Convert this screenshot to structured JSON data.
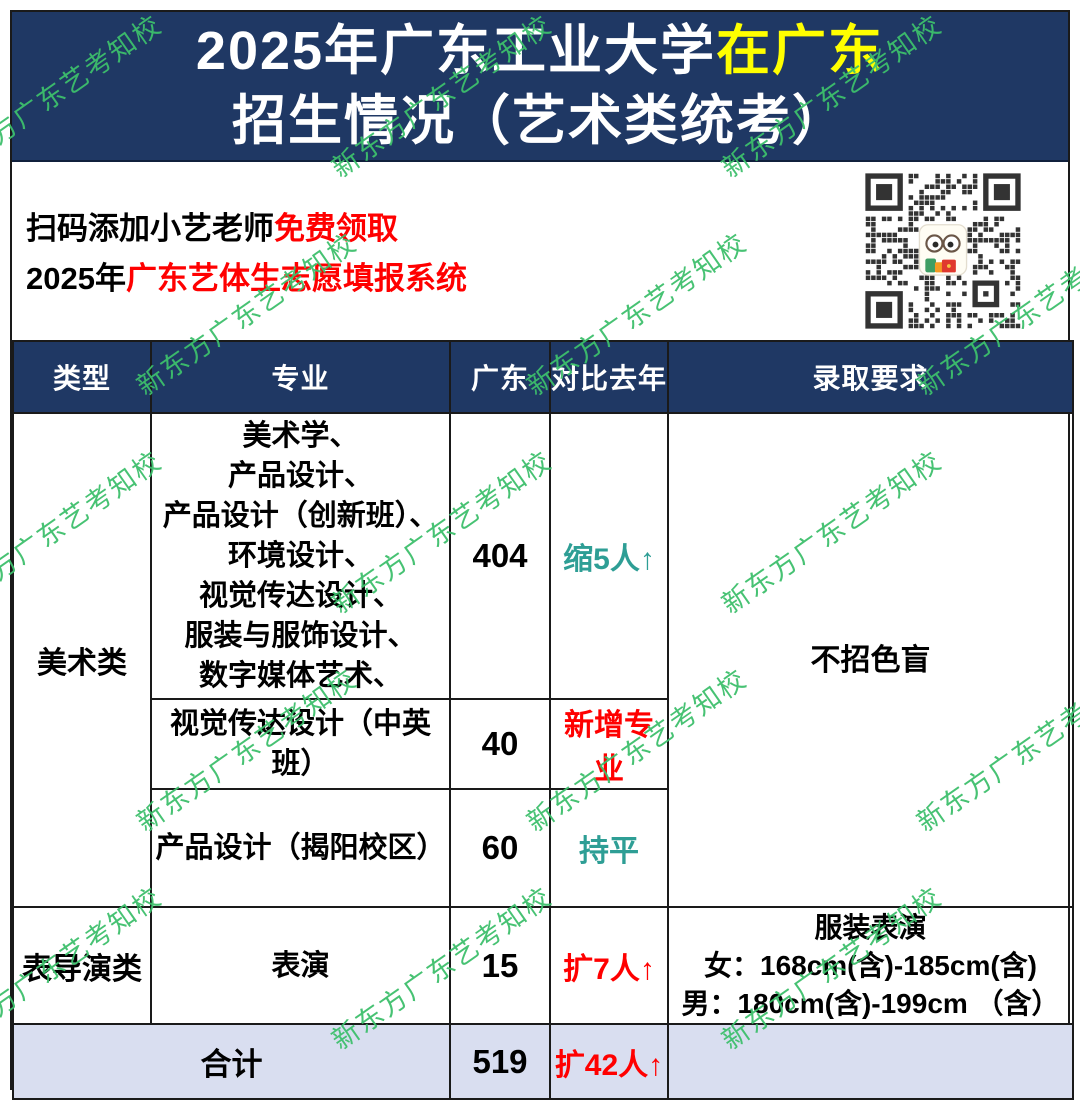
{
  "title": {
    "line1_white": "2025年广东工业大学",
    "line1_highlight": "在广东",
    "line2": "招生情况（艺术类统考）"
  },
  "promo": {
    "line1_black": "扫码添加小艺老师",
    "line1_red": "免费领取",
    "line2_black": "2025年",
    "line2_red": "广东艺体生志愿填报系统"
  },
  "qr": {
    "label": "qr-code-with-mascot"
  },
  "watermark": {
    "text": "新东方广东艺考知校",
    "color": "#3dbf6b"
  },
  "colors": {
    "navy": "#1f3864",
    "highlight_yellow": "#ffff00",
    "red": "#ff0000",
    "teal": "#2e9e95",
    "footer_bg": "#d9def0",
    "watermark_green": "#3dbf6b"
  },
  "table": {
    "headers": [
      "类型",
      "专业",
      "广东",
      "对比去年",
      "录取要求"
    ],
    "rows": [
      {
        "type": "美术类",
        "major": "美术学、\n产品设计、\n产品设计（创新班）、\n环境设计、\n视觉传达设计、\n服装与服饰设计、\n数字媒体艺术、",
        "guangdong": "404",
        "compare": "缩5人↑",
        "compare_color": "teal",
        "requirement": "不招色盲"
      },
      {
        "major": "视觉传达设计（中英班）",
        "guangdong": "40",
        "compare": "新增专业",
        "compare_color": "red"
      },
      {
        "major": "产品设计（揭阳校区）",
        "guangdong": "60",
        "compare": "持平",
        "compare_color": "teal"
      },
      {
        "type": "表导演类",
        "major": "表演",
        "guangdong": "15",
        "compare": "扩7人↑",
        "compare_color": "red",
        "requirement": "服装表演\n女：168cm(含)-185cm(含)\n男：180cm(含)-199cm （含）"
      }
    ],
    "footer": {
      "label": "合计",
      "guangdong": "519",
      "compare": "扩42人↑",
      "compare_color": "red",
      "requirement": ""
    }
  }
}
